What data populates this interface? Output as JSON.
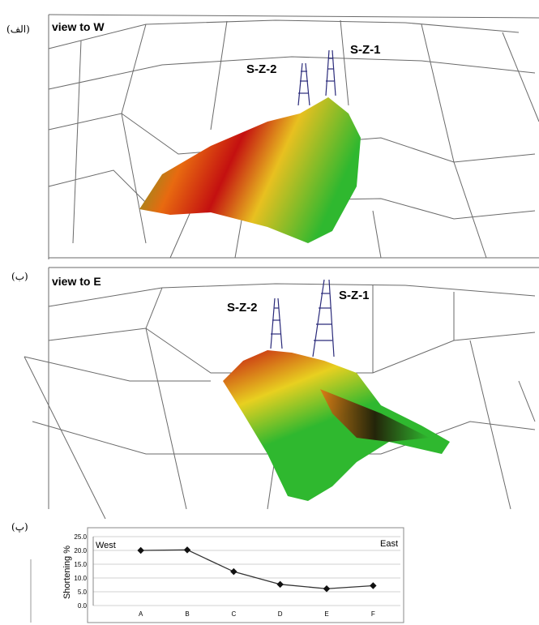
{
  "panels": [
    {
      "label": "(الف)",
      "view": "view to W",
      "wells": [
        "S-Z-2",
        "S-Z-1"
      ]
    },
    {
      "label": "(ب)",
      "view": "view to E",
      "wells": [
        "S-Z-2",
        "S-Z-1"
      ]
    },
    {
      "label": "(پ)"
    }
  ],
  "chart_data": {
    "type": "line",
    "y_label": "Shortening %",
    "categories": [
      "A",
      "B",
      "C",
      "D",
      "E",
      "F"
    ],
    "series": [
      {
        "name": "Shortening %",
        "color": "#333333",
        "values": [
          20.0,
          20.2,
          12.3,
          7.7,
          6.1,
          7.2
        ]
      }
    ],
    "annotations": [
      "West",
      "East"
    ],
    "ylim": [
      0,
      25
    ],
    "yticks": [
      {
        "value": 0,
        "label": "0.0"
      },
      {
        "value": 5,
        "label": "5.0"
      },
      {
        "value": 10,
        "label": "10.0"
      },
      {
        "value": 15,
        "label": "15.0"
      },
      {
        "value": 20,
        "label": "20.0"
      },
      {
        "value": 25,
        "label": "25.0"
      }
    ],
    "grid": true
  }
}
